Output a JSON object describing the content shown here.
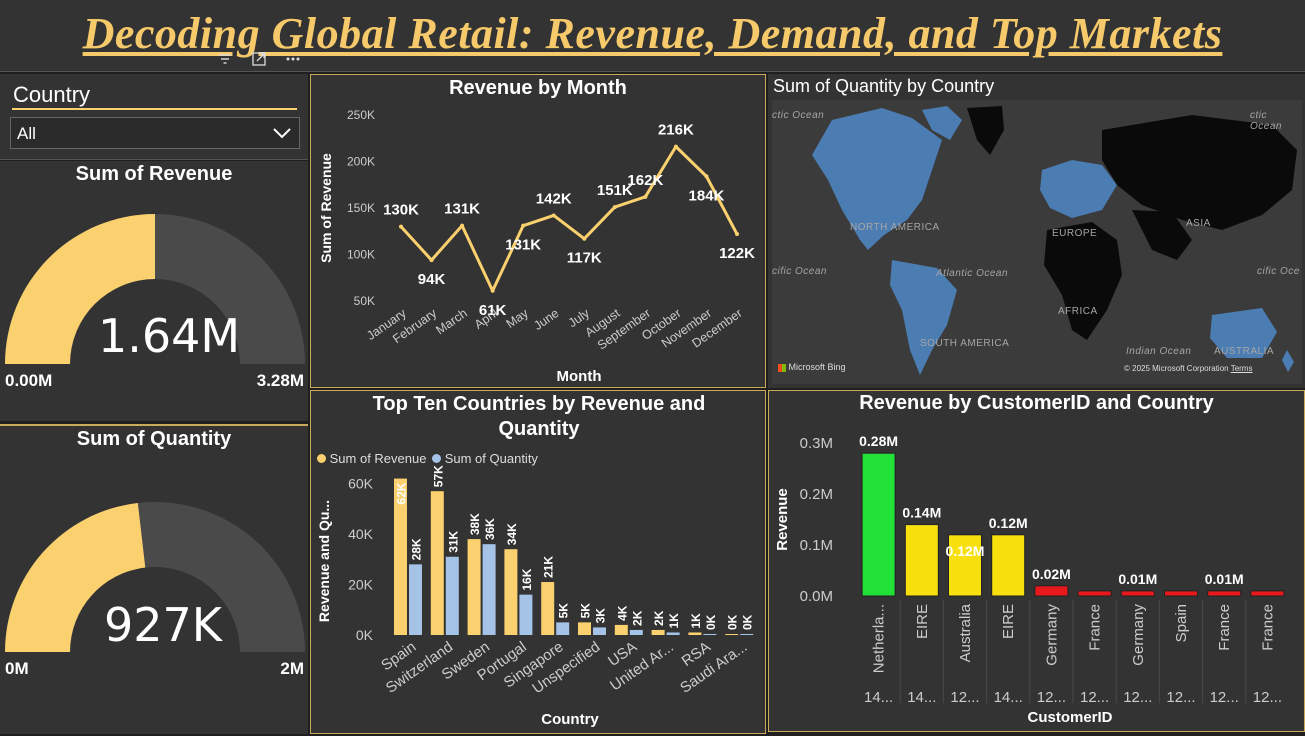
{
  "title": "Decoding Global Retail: Revenue, Demand, and Top Markets",
  "colors": {
    "gold": "#fad16e",
    "blue": "#a5c3e6",
    "green": "#22e036",
    "yellow": "#f7e00e",
    "red": "#e8191d",
    "panel": "#333333"
  },
  "header_icons": [
    "filter-icon",
    "focus-mode-icon",
    "more-options-icon"
  ],
  "slicer": {
    "label": "Country",
    "selected": "All"
  },
  "revenue_gauge": {
    "title": "Sum of Revenue",
    "value": 1.64,
    "value_label": "1.64M",
    "min_label": "0.00M",
    "max_label": "3.28M",
    "max": 3.28
  },
  "quantity_gauge": {
    "title": "Sum of Quantity",
    "value": 927,
    "value_label": "927K",
    "min_label": "0M",
    "max_label": "2M",
    "max": 2000
  },
  "map": {
    "title": "Sum of Quantity by Country",
    "labels": [
      "NORTH AMERICA",
      "EUROPE",
      "ASIA",
      "AFRICA",
      "SOUTH AMERICA",
      "AUSTRALIA",
      "Atlantic Ocean",
      "Indian Ocean",
      "ctic Ocean",
      "cific Ocean",
      "cific Oce",
      "ctic Ocean"
    ],
    "bing": "Microsoft Bing",
    "copyright": "© 2025 Microsoft Corporation",
    "terms": "Terms"
  },
  "chart_data": [
    {
      "type": "line",
      "title": "Revenue by Month",
      "xlabel": "Month",
      "ylabel": "Sum of Revenue",
      "categories": [
        "January",
        "February",
        "March",
        "April",
        "May",
        "June",
        "July",
        "August",
        "September",
        "October",
        "November",
        "December"
      ],
      "values": [
        130000,
        94000,
        131000,
        61000,
        131000,
        142000,
        117000,
        151000,
        162000,
        216000,
        184000,
        122000
      ],
      "data_labels": [
        "130K",
        "94K",
        "131K",
        "61K",
        "131K",
        "142K",
        "117K",
        "151K",
        "162K",
        "216K",
        "184K",
        "122K"
      ],
      "yticks": [
        "50K",
        "100K",
        "150K",
        "200K",
        "250K"
      ],
      "ylim": [
        50000,
        250000
      ],
      "grid": false,
      "color": "#fad16e"
    },
    {
      "type": "bar",
      "title": "Top Ten Countries by Revenue and Quantity",
      "xlabel": "Country",
      "ylabel": "Revenue and Qu...",
      "categories": [
        "Spain",
        "Switzerland",
        "Sweden",
        "Portugal",
        "Singapore",
        "Unspecified",
        "USA",
        "United Ar...",
        "RSA",
        "Saudi Ara..."
      ],
      "series": [
        {
          "name": "Sum of Revenue",
          "color": "#fad16e",
          "values": [
            62000,
            57000,
            38000,
            34000,
            21000,
            5000,
            4000,
            2000,
            1000,
            0
          ],
          "labels": [
            "62K",
            "57K",
            "38K",
            "34K",
            "21K",
            "5K",
            "4K",
            "2K",
            "1K",
            "0K"
          ]
        },
        {
          "name": "Sum of Quantity",
          "color": "#a5c3e6",
          "values": [
            28000,
            31000,
            36000,
            16000,
            5000,
            3000,
            2000,
            1000,
            0,
            0
          ],
          "labels": [
            "28K",
            "31K",
            "36K",
            "16K",
            "5K",
            "3K",
            "2K",
            "1K",
            "0K",
            "0K"
          ]
        }
      ],
      "yticks": [
        "0K",
        "20K",
        "40K",
        "60K"
      ],
      "ylim": [
        0,
        65000
      ],
      "legend": "top-left",
      "grid": false
    },
    {
      "type": "bar",
      "title": "Revenue by CustomerID and Country",
      "xlabel": "CustomerID",
      "ylabel": "Revenue",
      "categories": [
        "Netherla...",
        "EIRE",
        "Australia",
        "EIRE",
        "Germany",
        "France",
        "Germany",
        "Spain",
        "France",
        "France"
      ],
      "customer_ids": [
        "14...",
        "14...",
        "12...",
        "14...",
        "12...",
        "12...",
        "12...",
        "12...",
        "12...",
        "12..."
      ],
      "values": [
        0.28,
        0.14,
        0.12,
        0.12,
        0.02,
        0.01,
        0.01,
        0.01,
        0.01,
        0.01
      ],
      "data_labels": [
        "0.28M",
        "0.14M",
        "0.12M",
        "0.12M",
        "0.02M",
        "",
        "0.01M",
        "",
        "0.01M",
        ""
      ],
      "bar_colors": [
        "#22e036",
        "#f7e00e",
        "#f7e00e",
        "#f7e00e",
        "#e8191d",
        "#e8191d",
        "#e8191d",
        "#e8191d",
        "#e8191d",
        "#e8191d"
      ],
      "yticks": [
        "0.0M",
        "0.1M",
        "0.2M",
        "0.3M"
      ],
      "ylim": [
        0,
        0.3
      ],
      "unit": "M",
      "grid": false
    }
  ]
}
